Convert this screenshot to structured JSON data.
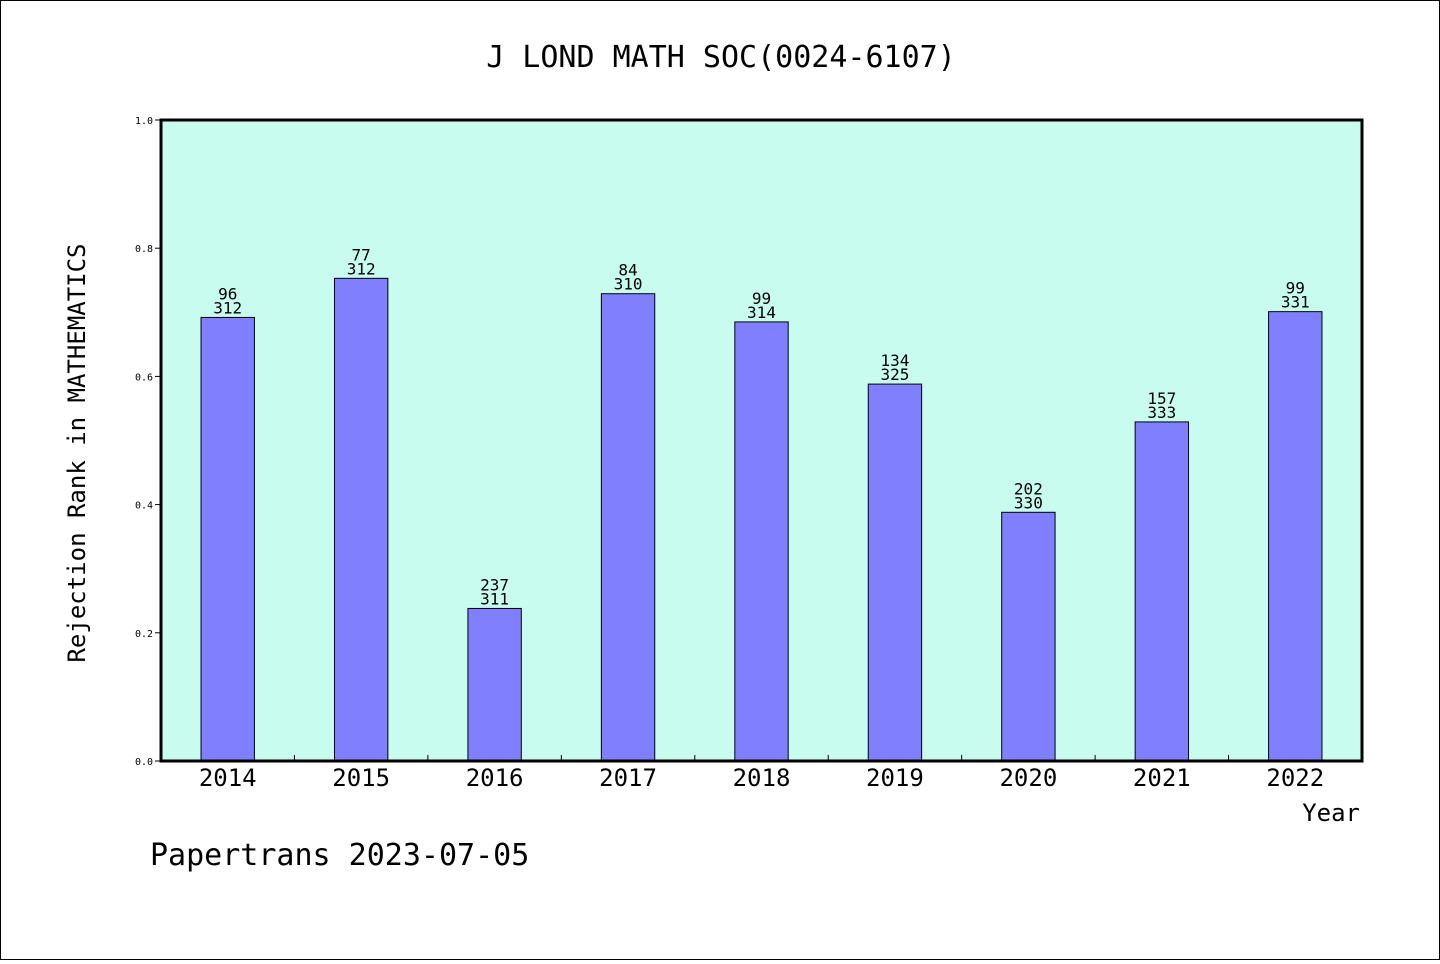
{
  "chart_data": {
    "type": "bar",
    "title": "J LOND MATH SOC(0024-6107)",
    "xlabel": "Year",
    "ylabel": "Rejection Rank in MATHEMATICS",
    "ylim": [
      0.0,
      1.0
    ],
    "yticks": [
      "0.0",
      "0.2",
      "0.4",
      "0.6",
      "0.8",
      "1.0"
    ],
    "categories": [
      "2014",
      "2015",
      "2016",
      "2017",
      "2018",
      "2019",
      "2020",
      "2021",
      "2022"
    ],
    "values": [
      0.692,
      0.753,
      0.238,
      0.729,
      0.685,
      0.588,
      0.388,
      0.529,
      0.701
    ],
    "labels_top": [
      "96",
      "77",
      "237",
      "84",
      "99",
      "134",
      "202",
      "157",
      "99"
    ],
    "labels_bottom": [
      "312",
      "312",
      "311",
      "310",
      "314",
      "325",
      "330",
      "333",
      "331"
    ],
    "grid": false,
    "colors": {
      "plot_background": "#c8fcee",
      "bar_fill": "#8080ff",
      "bar_stroke": "#000000"
    }
  },
  "footer": {
    "text": "Papertrans 2023-07-05"
  }
}
